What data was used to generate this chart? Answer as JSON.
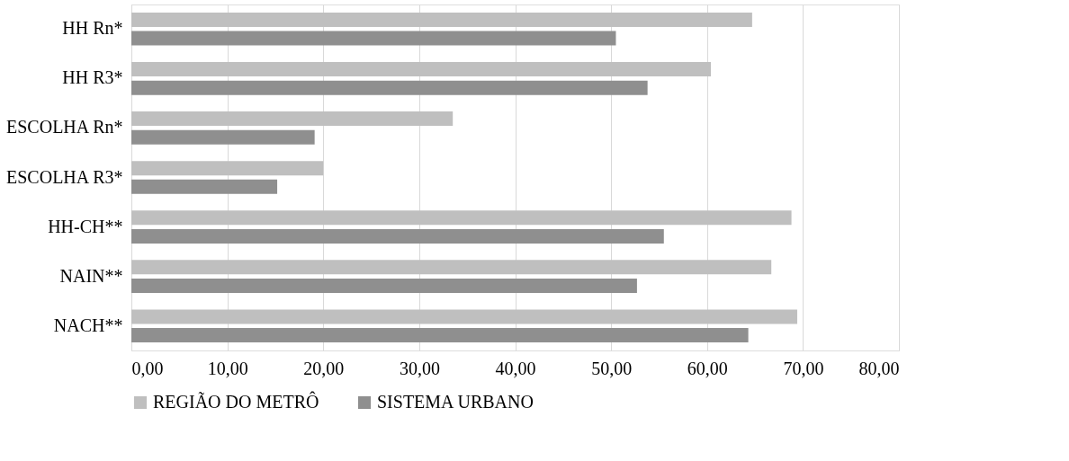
{
  "chart_data": {
    "type": "bar",
    "orientation": "horizontal",
    "categories": [
      "HH Rn*",
      "HH R3*",
      "ESCOLHA Rn*",
      "ESCOLHA R3*",
      "HH-CH**",
      "NAIN**",
      "NACH**"
    ],
    "series": [
      {
        "name": "REGIÃO DO METRÔ",
        "color": "#bfbfbf",
        "values": [
          64.7,
          60.4,
          33.5,
          20.0,
          68.8,
          66.7,
          69.4
        ]
      },
      {
        "name": "SISTEMA URBANO",
        "color": "#8f8f8f",
        "values": [
          50.5,
          53.8,
          19.1,
          15.2,
          55.5,
          52.7,
          64.3
        ]
      }
    ],
    "xlim": [
      0,
      80
    ],
    "xticks": [
      {
        "value": 0,
        "label": "0,00"
      },
      {
        "value": 10,
        "label": "10,00"
      },
      {
        "value": 20,
        "label": "20,00"
      },
      {
        "value": 30,
        "label": "30,00"
      },
      {
        "value": 40,
        "label": "40,00"
      },
      {
        "value": 50,
        "label": "50,00"
      },
      {
        "value": 60,
        "label": "60,00"
      },
      {
        "value": 70,
        "label": "70,00"
      },
      {
        "value": 80,
        "label": "80,00"
      }
    ],
    "grid": "x",
    "legend": "bottom"
  }
}
